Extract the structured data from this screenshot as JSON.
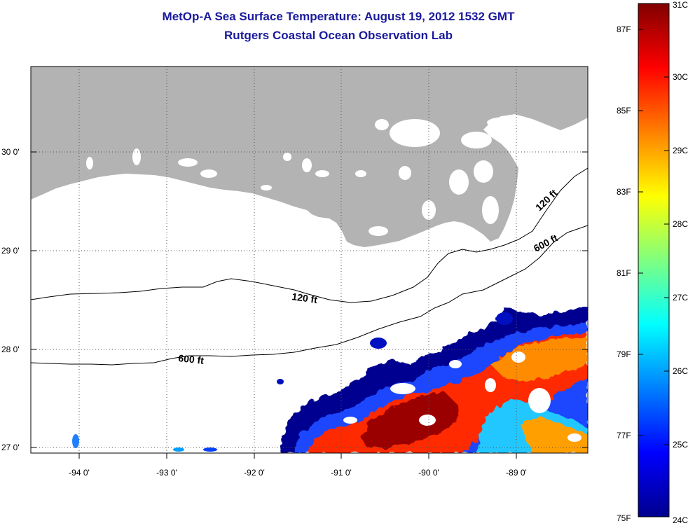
{
  "title": {
    "line1": "MetOp-A Sea Surface Temperature:  August 19, 2012 1532 GMT",
    "line2": "Rutgers Coastal Ocean Observation Lab"
  },
  "map": {
    "lat_ticks": [
      "30 0'",
      "29 0'",
      "28 0'",
      "27 0'"
    ],
    "lon_ticks": [
      "-94 0'",
      "-93 0'",
      "-92 0'",
      "-91 0'",
      "-90 0'",
      "-89 0'"
    ],
    "contours": [
      {
        "label": "120 ft"
      },
      {
        "label": "600 ft"
      },
      {
        "label": "120 ft"
      },
      {
        "label": "600 ft"
      }
    ],
    "colors": {
      "land": "#b3b3b3",
      "water": "#ffffff",
      "contour": "#000000"
    }
  },
  "colorbar": {
    "fahrenheit": [
      "87F",
      "85F",
      "83F",
      "81F",
      "79F",
      "77F",
      "75F"
    ],
    "celsius": [
      "31C",
      "30C",
      "29C",
      "28C",
      "27C",
      "26C",
      "25C",
      "24C"
    ],
    "range_c": [
      24,
      31
    ]
  }
}
